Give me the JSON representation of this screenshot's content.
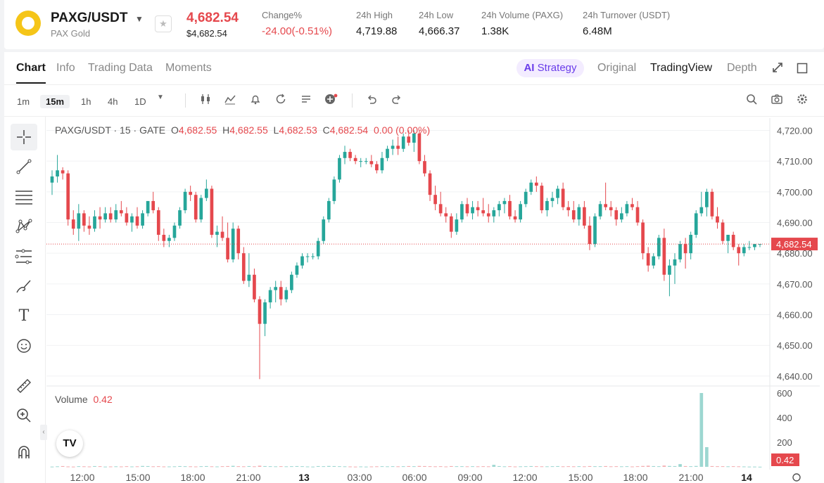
{
  "ticker": {
    "pair": "PAXG/USDT",
    "name": "PAX Gold",
    "last_price": "4,682.54",
    "usd_price": "$4,682.54",
    "stats": [
      {
        "label": "Change%",
        "value": "-24.00(-0.51%)",
        "negative": true
      },
      {
        "label": "24h High",
        "value": "4,719.88"
      },
      {
        "label": "24h Low",
        "value": "4,666.37"
      },
      {
        "label": "24h Volume (PAXG)",
        "value": "1.38K"
      },
      {
        "label": "24h Turnover (USDT)",
        "value": "6.48M"
      }
    ]
  },
  "tabs": {
    "left": [
      "Chart",
      "Info",
      "Trading Data",
      "Moments"
    ],
    "active": "Chart",
    "strategy": "Strategy",
    "strategy_mark": "AI",
    "right": [
      "Original",
      "TradingView",
      "Depth"
    ],
    "right_active": "TradingView"
  },
  "toolbar": {
    "timeframes": [
      "1m",
      "15m",
      "1h",
      "4h",
      "1D"
    ],
    "active_timeframe": "15m"
  },
  "legend": {
    "prefix": "PAXG/USDT · 15 · GATE",
    "o_label": "O",
    "o": "4,682.55",
    "h_label": "H",
    "h": "4,682.55",
    "l_label": "L",
    "l": "4,682.53",
    "c_label": "C",
    "c": "4,682.54",
    "change": "0.00 (0.00%)"
  },
  "volume_legend": {
    "label": "Volume",
    "value": "0.42"
  },
  "icons": {
    "tools": [
      "crosshair-icon",
      "trendline-icon",
      "fib-icon",
      "pattern-icon",
      "forecast-icon",
      "brush-icon",
      "text-icon",
      "emoji-icon",
      "ruler-icon",
      "zoom-icon",
      "magnet-icon"
    ],
    "toolbar": [
      "candle-type-icon",
      "indicators-icon",
      "alert-icon",
      "replay-icon",
      "templates-icon",
      "add-icon",
      "undo-icon",
      "redo-icon",
      "search-icon",
      "camera-icon",
      "settings-icon"
    ]
  },
  "colors": {
    "up": "#26a69a",
    "down": "#e5484d",
    "accent": "#6a3dea"
  },
  "chart_data": {
    "type": "candlestick",
    "price_axis": {
      "ticks": [
        "4,720.00",
        "4,710.00",
        "4,700.00",
        "4,690.00",
        "4,680.00",
        "4,670.00",
        "4,660.00",
        "4,650.00",
        "4,640.00"
      ],
      "range": [
        4637,
        4724
      ]
    },
    "last_price_label": "4,682.54",
    "volume_axis": {
      "ticks": [
        "600",
        "400",
        "200"
      ],
      "range": [
        0,
        640
      ]
    },
    "volume_last_label": "0.42",
    "time_axis": [
      "12:00",
      "15:00",
      "18:00",
      "21:00",
      "13",
      "03:00",
      "06:00",
      "09:00",
      "12:00",
      "15:00",
      "18:00",
      "21:00",
      "14"
    ],
    "bar_minutes": 15,
    "candles": [
      [
        4703,
        4707,
        4699,
        4705,
        2
      ],
      [
        4705,
        4712,
        4703,
        4707,
        4
      ],
      [
        4707,
        4708,
        4704,
        4706,
        6
      ],
      [
        4706,
        4707,
        4689,
        4691,
        3
      ],
      [
        4691,
        4694,
        4686,
        4688,
        2
      ],
      [
        4688,
        4696,
        4684,
        4693,
        5
      ],
      [
        4693,
        4694,
        4687,
        4689,
        4
      ],
      [
        4689,
        4692,
        4686,
        4688,
        3
      ],
      [
        4688,
        4694,
        4687,
        4692,
        6
      ],
      [
        4692,
        4695,
        4688,
        4691,
        5
      ],
      [
        4691,
        4695,
        4690,
        4693,
        2
      ],
      [
        4693,
        4695,
        4690,
        4691,
        3
      ],
      [
        4691,
        4696,
        4690,
        4694,
        4
      ],
      [
        4694,
        4697,
        4692,
        4693,
        3
      ],
      [
        4693,
        4695,
        4689,
        4690,
        5
      ],
      [
        4690,
        4693,
        4687,
        4692,
        3
      ],
      [
        4692,
        4695,
        4688,
        4689,
        4
      ],
      [
        4689,
        4694,
        4688,
        4693,
        7
      ],
      [
        4693,
        4697,
        4692,
        4697,
        6
      ],
      [
        4697,
        4700,
        4693,
        4694,
        4
      ],
      [
        4694,
        4695,
        4684,
        4686,
        5
      ],
      [
        4686,
        4688,
        4682,
        4684,
        3
      ],
      [
        4684,
        4686,
        4682,
        4685,
        3
      ],
      [
        4685,
        4690,
        4684,
        4689,
        4
      ],
      [
        4689,
        4695,
        4688,
        4694,
        6
      ],
      [
        4694,
        4701,
        4693,
        4700,
        5
      ],
      [
        4700,
        4702,
        4697,
        4699,
        4
      ],
      [
        4699,
        4700,
        4690,
        4691,
        3
      ],
      [
        4691,
        4699,
        4690,
        4698,
        5
      ],
      [
        4698,
        4704,
        4697,
        4701,
        6
      ],
      [
        4701,
        4702,
        4685,
        4686,
        4
      ],
      [
        4686,
        4689,
        4682,
        4687,
        3
      ],
      [
        4687,
        4692,
        4684,
        4685,
        5
      ],
      [
        4685,
        4690,
        4677,
        4678,
        6
      ],
      [
        4678,
        4690,
        4677,
        4688,
        8
      ],
      [
        4688,
        4689,
        4678,
        4680,
        5
      ],
      [
        4680,
        4682,
        4670,
        4671,
        4
      ],
      [
        4671,
        4680,
        4669,
        4673,
        6
      ],
      [
        4673,
        4675,
        4664,
        4665,
        4
      ],
      [
        4665,
        4666,
        4639,
        4657,
        9
      ],
      [
        4657,
        4665,
        4653,
        4664,
        6
      ],
      [
        4664,
        4669,
        4662,
        4668,
        5
      ],
      [
        4668,
        4671,
        4664,
        4669,
        4
      ],
      [
        4669,
        4671,
        4663,
        4665,
        5
      ],
      [
        4665,
        4669,
        4664,
        4668,
        4
      ],
      [
        4668,
        4674,
        4667,
        4673,
        5
      ],
      [
        4673,
        4677,
        4672,
        4676,
        6
      ],
      [
        4676,
        4680,
        4675,
        4679,
        5
      ],
      [
        4679,
        4680,
        4677,
        4679,
        3
      ],
      [
        4679,
        4680,
        4678,
        4679,
        2
      ],
      [
        4679,
        4685,
        4678,
        4684,
        6
      ],
      [
        4684,
        4692,
        4683,
        4691,
        5
      ],
      [
        4691,
        4698,
        4690,
        4697,
        7
      ],
      [
        4697,
        4705,
        4696,
        4704,
        6
      ],
      [
        4704,
        4712,
        4703,
        4711,
        5
      ],
      [
        4711,
        4715,
        4709,
        4713,
        4
      ],
      [
        4713,
        4714,
        4710,
        4711,
        3
      ],
      [
        4711,
        4712,
        4709,
        4710,
        2
      ],
      [
        4710,
        4711,
        4708,
        4710,
        3
      ],
      [
        4710,
        4711,
        4709,
        4710,
        2
      ],
      [
        4710,
        4712,
        4708,
        4709,
        3
      ],
      [
        4709,
        4710,
        4706,
        4707,
        4
      ],
      [
        4707,
        4713,
        4706,
        4711,
        5
      ],
      [
        4711,
        4715,
        4710,
        4714,
        4
      ],
      [
        4714,
        4717,
        4712,
        4715,
        5
      ],
      [
        4715,
        4718,
        4712,
        4714,
        4
      ],
      [
        4714,
        4719,
        4713,
        4718,
        5
      ],
      [
        4718,
        4720,
        4715,
        4716,
        6
      ],
      [
        4716,
        4720,
        4713,
        4719,
        5
      ],
      [
        4719,
        4720,
        4709,
        4710,
        7
      ],
      [
        4710,
        4712,
        4705,
        4706,
        6
      ],
      [
        4706,
        4707,
        4697,
        4699,
        5
      ],
      [
        4699,
        4702,
        4694,
        4696,
        4
      ],
      [
        4696,
        4700,
        4692,
        4693,
        5
      ],
      [
        4693,
        4695,
        4690,
        4692,
        3
      ],
      [
        4692,
        4693,
        4685,
        4687,
        6
      ],
      [
        4687,
        4693,
        4686,
        4691,
        5
      ],
      [
        4691,
        4697,
        4690,
        4696,
        5
      ],
      [
        4696,
        4698,
        4692,
        4693,
        4
      ],
      [
        4693,
        4697,
        4691,
        4695,
        5
      ],
      [
        4695,
        4697,
        4692,
        4694,
        4
      ],
      [
        4694,
        4698,
        4692,
        4693,
        5
      ],
      [
        4693,
        4696,
        4690,
        4692,
        4
      ],
      [
        4692,
        4695,
        4690,
        4694,
        16
      ],
      [
        4694,
        4697,
        4692,
        4696,
        6
      ],
      [
        4696,
        4698,
        4693,
        4697,
        4
      ],
      [
        4697,
        4699,
        4691,
        4692,
        5
      ],
      [
        4692,
        4694,
        4690,
        4691,
        3
      ],
      [
        4691,
        4697,
        4690,
        4696,
        4
      ],
      [
        4696,
        4701,
        4695,
        4700,
        5
      ],
      [
        4700,
        4704,
        4699,
        4703,
        6
      ],
      [
        4703,
        4705,
        4700,
        4702,
        5
      ],
      [
        4702,
        4703,
        4693,
        4694,
        4
      ],
      [
        4694,
        4698,
        4692,
        4697,
        4
      ],
      [
        4697,
        4700,
        4695,
        4698,
        5
      ],
      [
        4698,
        4702,
        4696,
        4701,
        6
      ],
      [
        4701,
        4703,
        4694,
        4695,
        4
      ],
      [
        4695,
        4697,
        4692,
        4694,
        5
      ],
      [
        4694,
        4697,
        4690,
        4691,
        4
      ],
      [
        4691,
        4696,
        4689,
        4695,
        5
      ],
      [
        4695,
        4697,
        4688,
        4689,
        4
      ],
      [
        4689,
        4692,
        4681,
        4683,
        6
      ],
      [
        4683,
        4693,
        4682,
        4692,
        5
      ],
      [
        4692,
        4697,
        4691,
        4696,
        5
      ],
      [
        4696,
        4703,
        4694,
        4695,
        6
      ],
      [
        4695,
        4697,
        4692,
        4694,
        4
      ],
      [
        4694,
        4695,
        4689,
        4691,
        5
      ],
      [
        4691,
        4695,
        4690,
        4693,
        4
      ],
      [
        4693,
        4697,
        4692,
        4696,
        5
      ],
      [
        4696,
        4698,
        4694,
        4695,
        3
      ],
      [
        4695,
        4697,
        4689,
        4690,
        5
      ],
      [
        4690,
        4691,
        4678,
        4680,
        7
      ],
      [
        4680,
        4682,
        4674,
        4676,
        9
      ],
      [
        4676,
        4680,
        4675,
        4679,
        6
      ],
      [
        4679,
        4686,
        4678,
        4685,
        5
      ],
      [
        4685,
        4688,
        4671,
        4673,
        10
      ],
      [
        4673,
        4678,
        4666,
        4676,
        7
      ],
      [
        4676,
        4680,
        4670,
        4678,
        6
      ],
      [
        4678,
        4684,
        4677,
        4683,
        22
      ],
      [
        4683,
        4685,
        4675,
        4680,
        6
      ],
      [
        4680,
        4687,
        4678,
        4686,
        5
      ],
      [
        4686,
        4694,
        4685,
        4693,
        7
      ],
      [
        4693,
        4700,
        4692,
        4695,
        600
      ],
      [
        4695,
        4701,
        4692,
        4700,
        160
      ],
      [
        4700,
        4701,
        4691,
        4692,
        6
      ],
      [
        4692,
        4695,
        4688,
        4690,
        5
      ],
      [
        4690,
        4691,
        4683,
        4684,
        5
      ],
      [
        4684,
        4686,
        4680,
        4686,
        4
      ],
      [
        4686,
        4687,
        4681,
        4682,
        5
      ],
      [
        4682,
        4683,
        4676,
        4680,
        4
      ],
      [
        4680,
        4683,
        4679,
        4682,
        3
      ],
      [
        4682,
        4684,
        4681,
        4682,
        2
      ],
      [
        4682,
        4683,
        4681,
        4683,
        2
      ],
      [
        4683,
        4683,
        4682,
        4683,
        1
      ]
    ]
  }
}
